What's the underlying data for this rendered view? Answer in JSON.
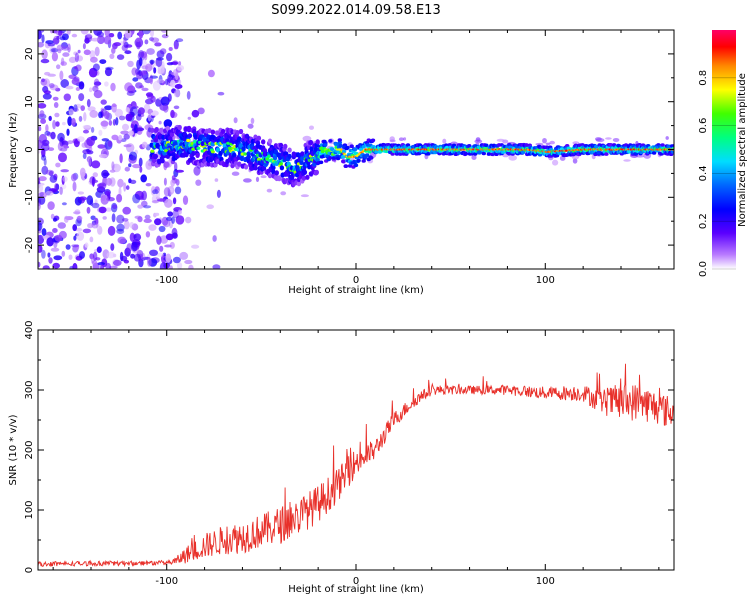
{
  "title": "S099.2022.014.09.58.E13",
  "chart_data": [
    {
      "type": "heatmap",
      "xlabel": "Height of straight line (km)",
      "ylabel": "Frequency (Hz)",
      "xlim": [
        -168,
        168
      ],
      "ylim": [
        -25,
        25
      ],
      "x_ticks": [
        -100,
        0,
        100
      ],
      "y_ticks": [
        20,
        10,
        0,
        -10,
        -20
      ],
      "x_tick_labels": [
        "-100",
        "0",
        "100"
      ],
      "y_tick_labels": [
        "20",
        "10",
        "0",
        "-10",
        "-20"
      ],
      "colorbar": {
        "label": "Normalized spectral amplitude",
        "range": [
          0,
          1
        ],
        "ticks": [
          0.0,
          0.2,
          0.4,
          0.6,
          0.8
        ],
        "tick_labels": [
          "0.0",
          "0.2",
          "0.4",
          "0.6",
          "0.8"
        ]
      },
      "ridge": {
        "x": [
          -105,
          -90,
          -80,
          -70,
          -60,
          -50,
          -40,
          -33,
          -28,
          -22,
          -18,
          -12,
          -8,
          -5,
          0,
          5,
          10,
          30,
          60,
          90,
          100,
          120,
          150,
          168
        ],
        "freq_hz": [
          0.5,
          1,
          0.5,
          0.5,
          0,
          -1.5,
          -2.5,
          -4,
          -3,
          -1.5,
          -0.5,
          0,
          0,
          -1.5,
          -1.5,
          0,
          0,
          0,
          0,
          0,
          -0.5,
          0,
          0,
          0
        ]
      }
    },
    {
      "type": "line",
      "xlabel": "Height of straight line (km)",
      "ylabel": "SNR (10 * v/v)",
      "xlim": [
        -168,
        168
      ],
      "ylim": [
        0,
        400
      ],
      "x_ticks": [
        -100,
        0,
        100
      ],
      "y_ticks": [
        0,
        100,
        200,
        300,
        400
      ],
      "x_tick_labels": [
        "-100",
        "0",
        "100"
      ],
      "y_tick_labels": [
        "0",
        "100",
        "200",
        "300",
        "400"
      ],
      "color": "#e8302a",
      "envelope": {
        "x": [
          -168,
          -100,
          -95,
          -90,
          -80,
          -70,
          -60,
          -50,
          -40,
          -30,
          -20,
          -10,
          0,
          10,
          20,
          30,
          40,
          60,
          80,
          100,
          120,
          130,
          140,
          150,
          160,
          168
        ],
        "y": [
          10,
          12,
          15,
          25,
          40,
          50,
          55,
          65,
          75,
          90,
          110,
          140,
          180,
          200,
          250,
          280,
          300,
          300,
          300,
          295,
          295,
          280,
          280,
          280,
          270,
          260
        ],
        "noise": [
          4,
          5,
          10,
          20,
          30,
          35,
          40,
          40,
          45,
          45,
          45,
          40,
          35,
          25,
          20,
          15,
          12,
          10,
          12,
          15,
          20,
          30,
          45,
          45,
          40,
          40
        ]
      }
    }
  ]
}
